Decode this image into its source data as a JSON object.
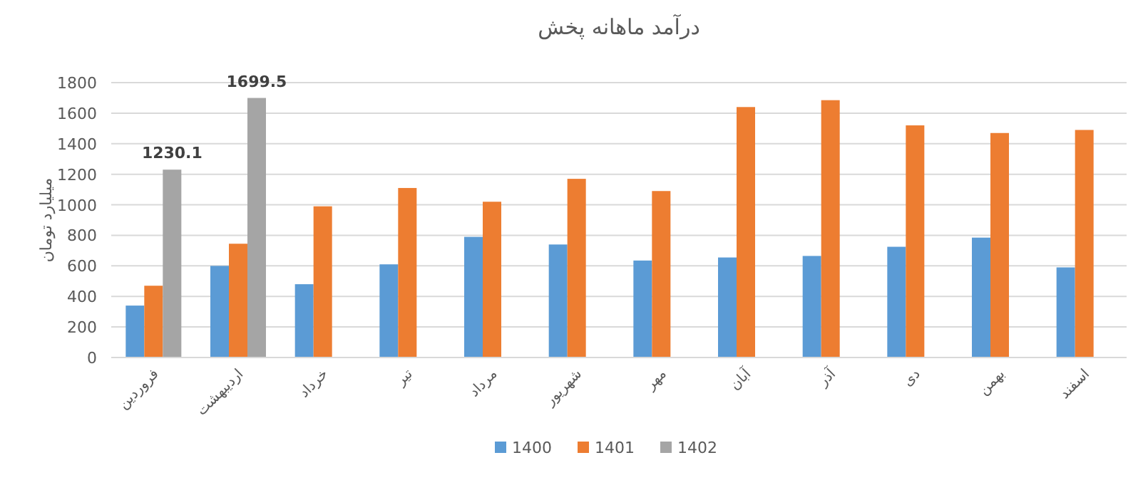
{
  "chart_data": {
    "type": "bar",
    "title": "درآمد ماهانه پخش",
    "ylabel": "میلیارد تومان",
    "categories": [
      "فروردین",
      "اردیبهشت",
      "خرداد",
      "تیر",
      "مرداد",
      "شهریور",
      "مهر",
      "آبان",
      "آذر",
      "دی",
      "بهمن",
      "اسفند"
    ],
    "series": [
      {
        "name": "1400",
        "color": "#5b9bd5",
        "values": [
          340,
          600,
          480,
          610,
          790,
          740,
          635,
          655,
          665,
          725,
          785,
          590
        ]
      },
      {
        "name": "1401",
        "color": "#ed7d31",
        "values": [
          470,
          745,
          990,
          1110,
          1020,
          1170,
          1090,
          1640,
          1685,
          1520,
          1470,
          1490
        ]
      },
      {
        "name": "1402",
        "color": "#a5a5a5",
        "values": [
          1230.1,
          1699.5,
          null,
          null,
          null,
          null,
          null,
          null,
          null,
          null,
          null,
          null
        ],
        "value_labels": [
          "1230.1",
          "1699.5",
          null,
          null,
          null,
          null,
          null,
          null,
          null,
          null,
          null,
          null
        ]
      }
    ],
    "ylim": [
      0,
      1800
    ],
    "yticks": [
      0,
      200,
      400,
      600,
      800,
      1000,
      1200,
      1400,
      1600,
      1800
    ],
    "grid": "y",
    "legend": "bottom"
  }
}
